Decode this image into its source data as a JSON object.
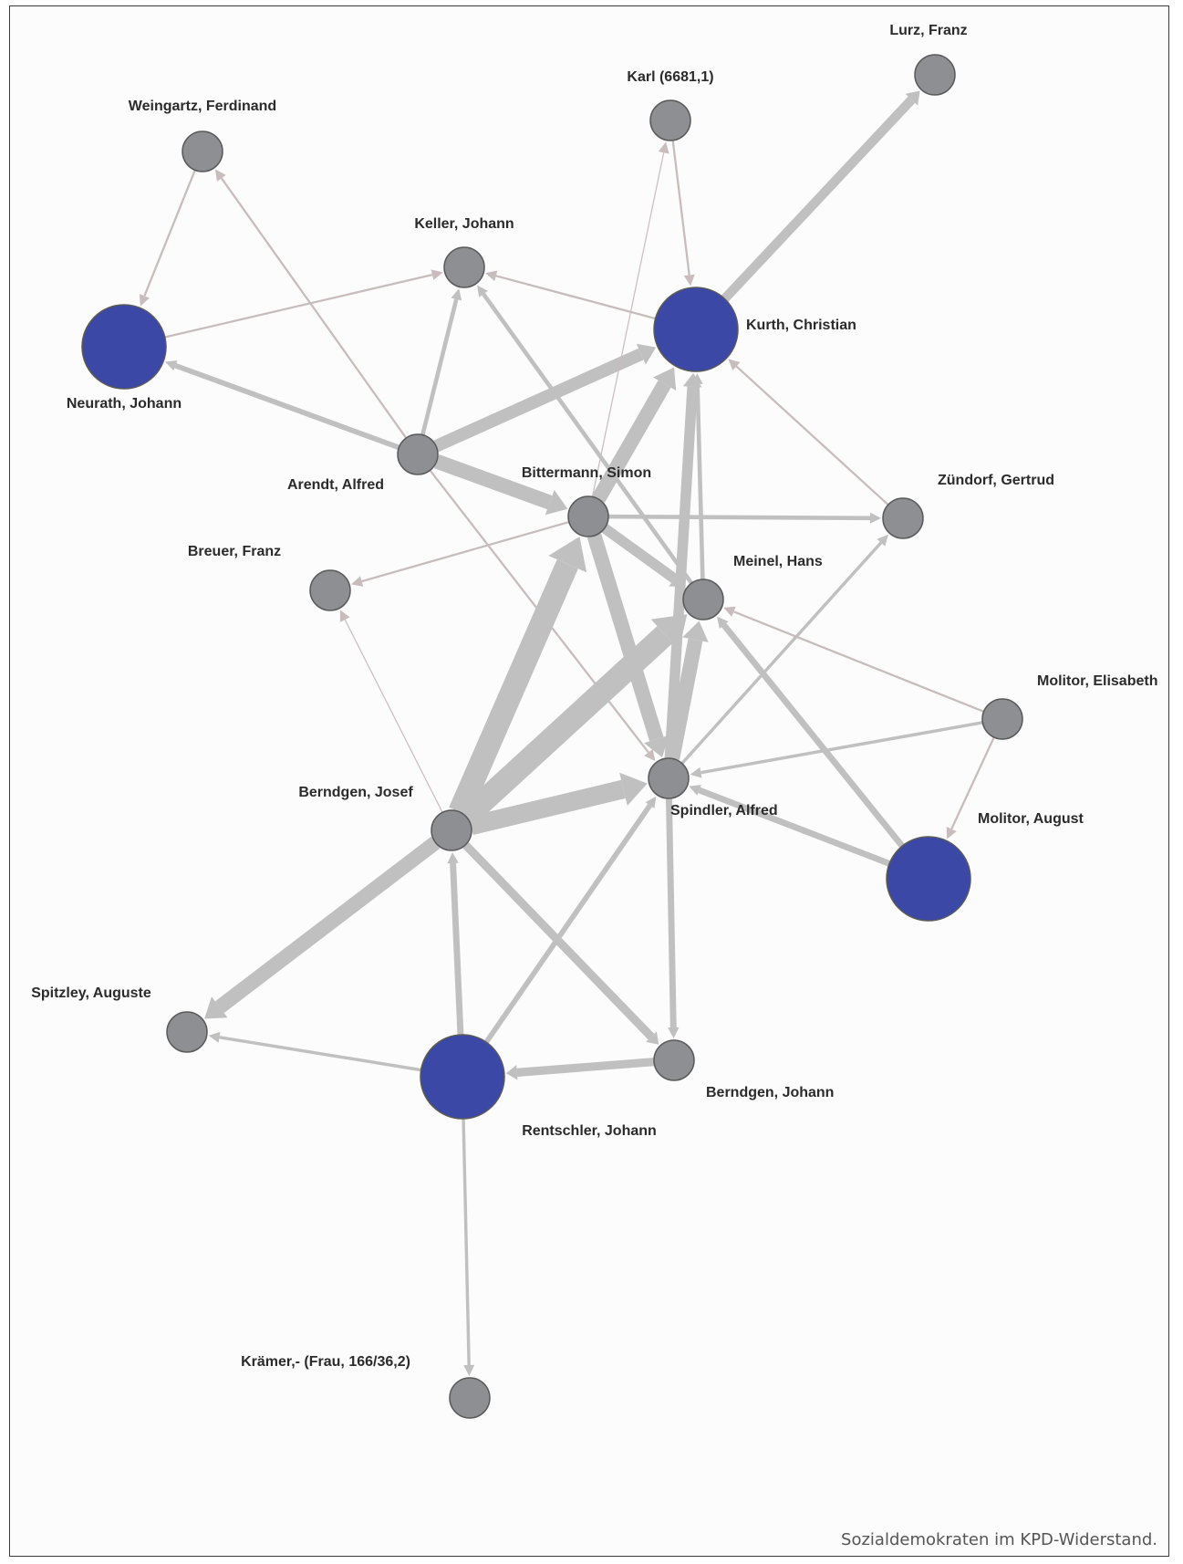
{
  "caption": "Sozialdemokraten im KPD-Widerstand.",
  "colors": {
    "node_default": "#8e8f93",
    "node_highlight": "#3b48a6",
    "edge": "#c0c0c0",
    "edge_thin": "#c9bcbc",
    "node_stroke": "#5a5a5a"
  },
  "nodes": [
    {
      "id": "lurz",
      "label": "Lurz, Franz",
      "highlight": false
    },
    {
      "id": "karl",
      "label": "Karl (6681,1)",
      "highlight": false
    },
    {
      "id": "weingartz",
      "label": "Weingartz, Ferdinand",
      "highlight": false
    },
    {
      "id": "keller",
      "label": "Keller, Johann",
      "highlight": false
    },
    {
      "id": "kurth",
      "label": "Kurth, Christian",
      "highlight": true
    },
    {
      "id": "neurath",
      "label": "Neurath, Johann",
      "highlight": true
    },
    {
      "id": "arendt",
      "label": "Arendt, Alfred",
      "highlight": false
    },
    {
      "id": "bittermann",
      "label": "Bittermann, Simon",
      "highlight": false
    },
    {
      "id": "zuendorf",
      "label": "Zündorf, Gertrud",
      "highlight": false
    },
    {
      "id": "breuer",
      "label": "Breuer, Franz",
      "highlight": false
    },
    {
      "id": "meinel",
      "label": "Meinel, Hans",
      "highlight": false
    },
    {
      "id": "molitor_e",
      "label": "Molitor, Elisabeth",
      "highlight": false
    },
    {
      "id": "spindler",
      "label": "Spindler, Alfred",
      "highlight": false
    },
    {
      "id": "berndgen_j",
      "label": "Berndgen, Josef",
      "highlight": false
    },
    {
      "id": "molitor_a",
      "label": "Molitor, August",
      "highlight": true
    },
    {
      "id": "spitzley",
      "label": "Spitzley, Auguste",
      "highlight": false
    },
    {
      "id": "rentschler",
      "label": "Rentschler, Johann",
      "highlight": true
    },
    {
      "id": "berndgen_jo",
      "label": "Berndgen, Johann",
      "highlight": false
    },
    {
      "id": "kraemer",
      "label": "Krämer,- (Frau, 166/36,2)",
      "highlight": false
    }
  ],
  "edges": [
    {
      "from": "kurth",
      "to": "lurz",
      "weight": 9
    },
    {
      "from": "karl",
      "to": "kurth",
      "weight": 2
    },
    {
      "from": "weingartz",
      "to": "neurath",
      "weight": 2
    },
    {
      "from": "neurath",
      "to": "keller",
      "weight": 2
    },
    {
      "from": "kurth",
      "to": "keller",
      "weight": 2
    },
    {
      "from": "arendt",
      "to": "neurath",
      "weight": 5
    },
    {
      "from": "arendt",
      "to": "weingartz",
      "weight": 2
    },
    {
      "from": "arendt",
      "to": "keller",
      "weight": 4
    },
    {
      "from": "arendt",
      "to": "kurth",
      "weight": 12
    },
    {
      "from": "arendt",
      "to": "bittermann",
      "weight": 14
    },
    {
      "from": "arendt",
      "to": "spindler",
      "weight": 2
    },
    {
      "from": "bittermann",
      "to": "karl",
      "weight": 1
    },
    {
      "from": "bittermann",
      "to": "kurth",
      "weight": 14
    },
    {
      "from": "bittermann",
      "to": "zuendorf",
      "weight": 4
    },
    {
      "from": "bittermann",
      "to": "breuer",
      "weight": 2
    },
    {
      "from": "bittermann",
      "to": "meinel",
      "weight": 10
    },
    {
      "from": "bittermann",
      "to": "spindler",
      "weight": 14
    },
    {
      "from": "berndgen_j",
      "to": "bittermann",
      "weight": 22
    },
    {
      "from": "zuendorf",
      "to": "kurth",
      "weight": 2
    },
    {
      "from": "meinel",
      "to": "kurth",
      "weight": 4
    },
    {
      "from": "meinel",
      "to": "keller",
      "weight": 4
    },
    {
      "from": "berndgen_j",
      "to": "meinel",
      "weight": 22
    },
    {
      "from": "spindler",
      "to": "meinel",
      "weight": 14
    },
    {
      "from": "spindler",
      "to": "kurth",
      "weight": 10
    },
    {
      "from": "spindler",
      "to": "zuendorf",
      "weight": 3
    },
    {
      "from": "berndgen_j",
      "to": "breuer",
      "weight": 1
    },
    {
      "from": "berndgen_j",
      "to": "spindler",
      "weight": 18
    },
    {
      "from": "berndgen_j",
      "to": "spitzley",
      "weight": 14
    },
    {
      "from": "berndgen_j",
      "to": "berndgen_jo",
      "weight": 8
    },
    {
      "from": "molitor_e",
      "to": "meinel",
      "weight": 2
    },
    {
      "from": "molitor_e",
      "to": "spindler",
      "weight": 3
    },
    {
      "from": "molitor_e",
      "to": "molitor_a",
      "weight": 2
    },
    {
      "from": "molitor_a",
      "to": "spindler",
      "weight": 6
    },
    {
      "from": "molitor_a",
      "to": "meinel",
      "weight": 6
    },
    {
      "from": "rentschler",
      "to": "berndgen_j",
      "weight": 6
    },
    {
      "from": "rentschler",
      "to": "spindler",
      "weight": 5
    },
    {
      "from": "rentschler",
      "to": "spitzley",
      "weight": 3
    },
    {
      "from": "berndgen_jo",
      "to": "rentschler",
      "weight": 8
    },
    {
      "from": "spindler",
      "to": "berndgen_jo",
      "weight": 6
    },
    {
      "from": "rentschler",
      "to": "kraemer",
      "weight": 3
    }
  ]
}
